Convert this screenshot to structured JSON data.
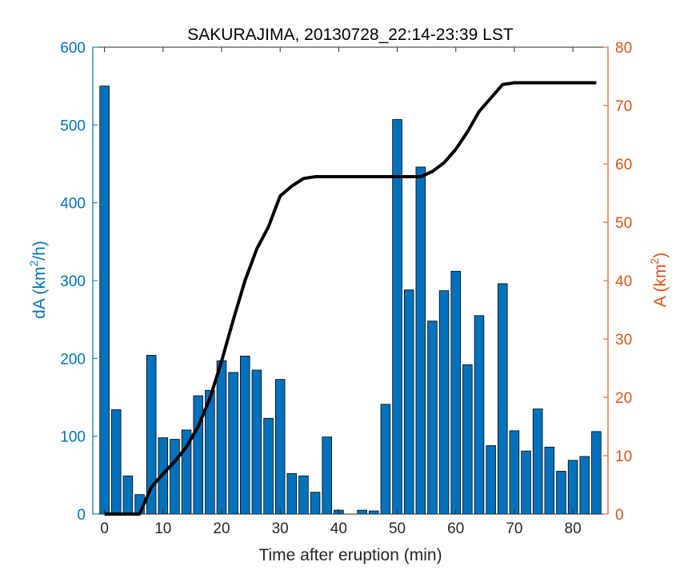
{
  "chart_data": {
    "type": "bar",
    "title": "SAKURAJIMA, 20130728_22:14-23:39 LST",
    "xlabel": "Time after eruption (min)",
    "ylabel_left": {
      "base": "dA (km",
      "sup": "2",
      "tail": "/h)"
    },
    "ylabel_right": {
      "base": "A (km",
      "sup": "2",
      "tail": ")"
    },
    "xlim": [
      -2,
      86
    ],
    "ylim_left": [
      0,
      600
    ],
    "ylim_right": [
      0,
      80
    ],
    "xticks": [
      0,
      10,
      20,
      30,
      40,
      50,
      60,
      70,
      80
    ],
    "yticks_left": [
      0,
      100,
      200,
      300,
      400,
      500,
      600
    ],
    "yticks_right": [
      0,
      10,
      20,
      30,
      40,
      50,
      60,
      70,
      80
    ],
    "colors": {
      "bars": "#0072BD",
      "left_axis": "#0072BD",
      "right_axis": "#D95319",
      "line": "#000000"
    },
    "bar_width": 1.6,
    "bars": {
      "x": [
        0,
        2,
        4,
        6,
        8,
        10,
        12,
        14,
        16,
        18,
        20,
        22,
        24,
        26,
        28,
        30,
        32,
        34,
        36,
        38,
        40,
        42,
        44,
        46,
        48,
        50,
        52,
        54,
        56,
        58,
        60,
        62,
        64,
        66,
        68,
        70,
        72,
        74,
        76,
        78,
        80,
        82,
        84
      ],
      "y": [
        550,
        134,
        49,
        25,
        204,
        98,
        96,
        108,
        152,
        159,
        197,
        182,
        203,
        185,
        123,
        173,
        52,
        49,
        28,
        99,
        5,
        0,
        5,
        4,
        141,
        507,
        288,
        446,
        248,
        287,
        312,
        192,
        255,
        88,
        296,
        107,
        81,
        135,
        86,
        55,
        69,
        74,
        106
      ]
    },
    "cumulative": {
      "x": [
        0,
        6,
        8,
        10,
        12,
        14,
        16,
        18,
        20,
        22,
        24,
        26,
        28,
        30,
        32,
        34,
        36,
        38,
        40,
        42,
        44,
        46,
        48,
        50,
        52,
        54,
        56,
        58,
        60,
        62,
        64,
        66,
        68,
        70,
        72,
        74,
        76,
        78,
        80,
        82,
        84
      ],
      "y": [
        0,
        0,
        4.6,
        6.9,
        9.0,
        11.5,
        15.0,
        19.8,
        26.2,
        33.3,
        40.0,
        45.4,
        49.2,
        54.5,
        56.2,
        57.5,
        57.8,
        57.8,
        57.8,
        57.8,
        57.8,
        57.8,
        57.8,
        57.8,
        57.8,
        57.8,
        58.7,
        60.2,
        62.5,
        65.5,
        69.0,
        71.3,
        73.6,
        73.9,
        73.9,
        73.9,
        73.9,
        73.9,
        73.9,
        73.9,
        73.9
      ]
    }
  }
}
